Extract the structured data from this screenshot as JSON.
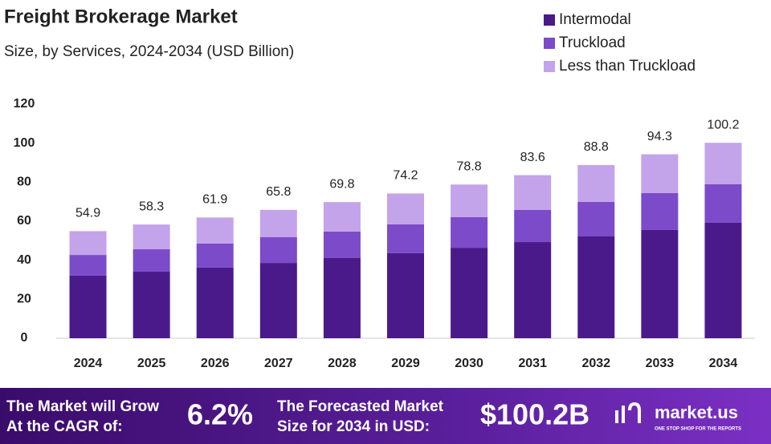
{
  "chart_data": {
    "type": "stacked_bar",
    "title": "Freight Brokerage Market",
    "subtitle": "Size, by Services, 2024-2034 (USD Billion)",
    "categories": [
      "2024",
      "2025",
      "2026",
      "2027",
      "2028",
      "2029",
      "2030",
      "2031",
      "2032",
      "2033",
      "2034"
    ],
    "series": [
      {
        "name": "Intermodal",
        "color": "#4a1a8a",
        "values": [
          32.1,
          34.1,
          36.2,
          38.6,
          41.1,
          43.6,
          46.4,
          49.3,
          52.2,
          55.5,
          59.2
        ]
      },
      {
        "name": "Truckload",
        "color": "#7b4bc9",
        "values": [
          10.6,
          11.5,
          12.3,
          13.2,
          13.6,
          14.8,
          15.7,
          16.5,
          17.7,
          18.9,
          19.7
        ]
      },
      {
        "name": "Less than Truckload",
        "color": "#c3a3ea",
        "values": [
          12.2,
          12.7,
          13.4,
          14.0,
          15.1,
          15.8,
          16.7,
          17.8,
          18.9,
          19.9,
          21.3
        ]
      }
    ],
    "totals": [
      54.9,
      58.3,
      61.9,
      65.8,
      69.8,
      74.2,
      78.8,
      83.6,
      88.8,
      94.3,
      100.2
    ],
    "ylim": [
      0,
      120
    ],
    "yticks": [
      0,
      20,
      40,
      60,
      80,
      100,
      120
    ],
    "grid": false,
    "legend": "top-right"
  },
  "banner": {
    "cagr_line1": "The Market will Grow",
    "cagr_line2": "At the CAGR of:",
    "cagr": "6.2%",
    "forecast_line1": "The Forecasted Market",
    "forecast_line2": "Size for 2034 in USD:",
    "forecast": "$100.2B",
    "brand": "market.us",
    "tagline": "ONE STOP SHOP FOR THE REPORTS"
  }
}
